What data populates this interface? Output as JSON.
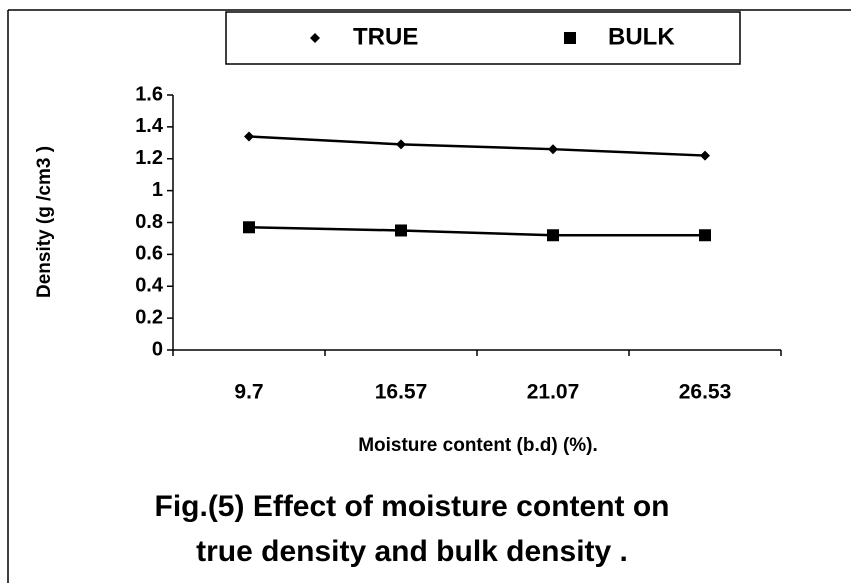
{
  "chart_data": {
    "type": "line",
    "categories": [
      "9.7",
      "16.57",
      "21.07",
      "26.53"
    ],
    "series": [
      {
        "name": "TRUE",
        "color": "#000000",
        "marker": "diamond",
        "values": [
          1.34,
          1.29,
          1.26,
          1.22
        ]
      },
      {
        "name": "BULK",
        "color": "#000000",
        "marker": "square",
        "values": [
          0.77,
          0.75,
          0.72,
          0.72
        ]
      }
    ],
    "ylim": [
      0,
      1.6
    ],
    "yticks": [
      0,
      0.2,
      0.4,
      0.6,
      0.8,
      1,
      1.2,
      1.4,
      1.6
    ],
    "grid": false,
    "ylabel": "Density (g /cm3 )",
    "xlabel": "Moisture content (b.d) (%).",
    "caption": [
      "Fig.(5) Effect of moisture content on",
      "true density and bulk density ."
    ],
    "legend": "top"
  }
}
